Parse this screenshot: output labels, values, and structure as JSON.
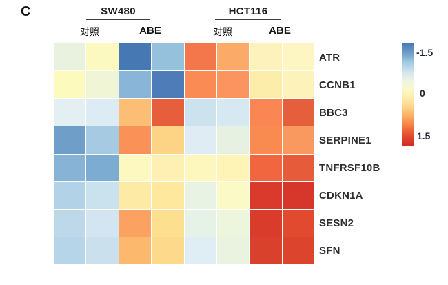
{
  "panel_label": "C",
  "header": {
    "groups": [
      {
        "label": "SW480",
        "conditions": [
          "对照",
          "ABE"
        ]
      },
      {
        "label": "HCT116",
        "conditions": [
          "对照",
          "ABE"
        ]
      }
    ]
  },
  "chart_data": {
    "type": "heatmap",
    "title": "",
    "cell_lines": [
      "SW480",
      "HCT116"
    ],
    "conditions_per_cell_line": [
      "对照",
      "ABE"
    ],
    "replicates_per_condition": 2,
    "columns": [
      "SW480 对照 1",
      "SW480 对照 2",
      "SW480 ABE 1",
      "SW480 ABE 2",
      "HCT116 对照 1",
      "HCT116 对照 2",
      "HCT116 ABE 1",
      "HCT116 ABE 2"
    ],
    "rows": [
      "ATR",
      "CCNB1",
      "BBC3",
      "SERPINE1",
      "TNFRSF10B",
      "CDKN1A",
      "SESN2",
      "SFN"
    ],
    "values": [
      [
        -0.2,
        0.1,
        -1.4,
        -0.85,
        1.0,
        0.75,
        0.1,
        0.1
      ],
      [
        0.1,
        -0.15,
        -0.95,
        -1.35,
        0.85,
        0.8,
        0.25,
        0.15
      ],
      [
        -0.35,
        -0.35,
        0.6,
        1.2,
        -0.5,
        -0.4,
        0.85,
        1.2
      ],
      [
        -1.1,
        -0.75,
        0.85,
        0.45,
        -0.35,
        -0.15,
        0.85,
        0.8
      ],
      [
        -0.95,
        -1.0,
        0.1,
        0.25,
        0.1,
        0.15,
        1.1,
        1.25
      ],
      [
        -0.65,
        -0.5,
        0.3,
        0.3,
        -0.15,
        0.05,
        1.4,
        1.4
      ],
      [
        -0.6,
        -0.45,
        0.75,
        0.45,
        -0.15,
        -0.2,
        1.35,
        1.25
      ],
      [
        -0.65,
        -0.5,
        0.6,
        0.45,
        -0.3,
        -0.2,
        1.35,
        1.35
      ]
    ],
    "cell_colors": [
      [
        "#e9f2df",
        "#fcf9c0",
        "#4678b4",
        "#96c1dc",
        "#f4764b",
        "#fbaa68",
        "#fdf2bc",
        "#fdf6c3"
      ],
      [
        "#fdfabe",
        "#f0f5d6",
        "#89b5d8",
        "#4d7cb8",
        "#fb8b54",
        "#fb945e",
        "#fcedab",
        "#fdf3ba"
      ],
      [
        "#e3eff3",
        "#ddecf4",
        "#fcbe74",
        "#e65e3b",
        "#cde2ef",
        "#d6e8f2",
        "#fa8654",
        "#e65f3c"
      ],
      [
        "#6f9ec9",
        "#a5cae1",
        "#fa9156",
        "#fdd486",
        "#dfecf3",
        "#e7f1e1",
        "#fa8b50",
        "#f9995f"
      ],
      [
        "#87b3d6",
        "#7cacd1",
        "#fdf8c0",
        "#fdf0b2",
        "#fdf6bd",
        "#fdf4b6",
        "#f1663e",
        "#e65b39"
      ],
      [
        "#b2d3e7",
        "#cae1ee",
        "#fdeba5",
        "#fde89e",
        "#e9f3e3",
        "#fbfac6",
        "#d93a2b",
        "#d7362a"
      ],
      [
        "#bdd8e9",
        "#d2e5f0",
        "#fba161",
        "#fddf90",
        "#e7f2e7",
        "#edf5dd",
        "#da3c2b",
        "#e24a2f"
      ],
      [
        "#b7d5e8",
        "#cae1ed",
        "#fcb86c",
        "#fdda8b",
        "#dfeef4",
        "#eaf3df",
        "#d9412c",
        "#dc442d"
      ]
    ],
    "colorbar": {
      "min": -1.5,
      "max": 1.5,
      "orientation": "vertical",
      "ticks": [
        "-1.5",
        "0",
        "1.5"
      ],
      "gradient": [
        "#4a7ab5",
        "#6d9dc8",
        "#9ec9e1",
        "#cfe3ef",
        "#eef4e4",
        "#fdf8c6",
        "#fdeaa4",
        "#fdcf84",
        "#fba55e",
        "#f4763f",
        "#e2492f",
        "#d22b26"
      ]
    },
    "legend_position": "right",
    "grid": false
  }
}
